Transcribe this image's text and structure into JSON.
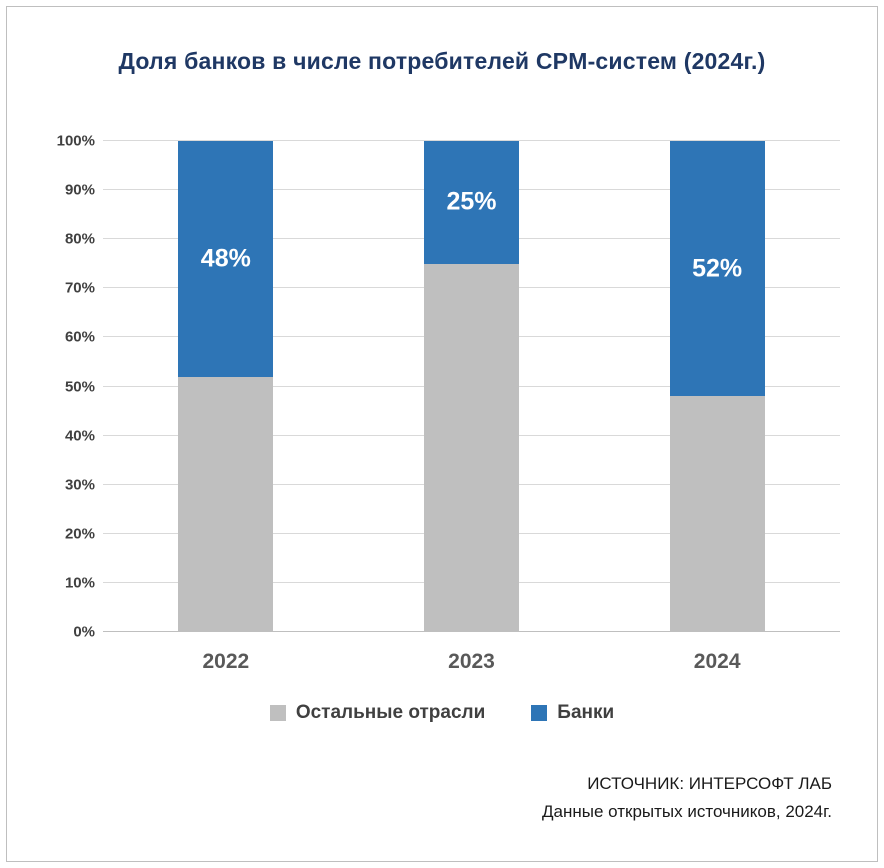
{
  "title": "Доля банков в числе потребителей CPM-систем (2024г.)",
  "chart_data": {
    "type": "bar",
    "stacked": true,
    "title": "Доля банков в числе потребителей CPM-систем (2024г.)",
    "categories": [
      "2022",
      "2023",
      "2024"
    ],
    "series": [
      {
        "name": "Остальные отрасли",
        "color": "#bfbfbf",
        "values": [
          52,
          75,
          48
        ]
      },
      {
        "name": "Банки",
        "color": "#2e75b6",
        "values": [
          48,
          25,
          52
        ],
        "labels": [
          "48%",
          "25%",
          "52%"
        ]
      }
    ],
    "xlabel": "",
    "ylabel": "",
    "ylim": [
      0,
      100
    ],
    "ytick_step": 10,
    "ytick_labels": [
      "0%",
      "10%",
      "20%",
      "30%",
      "40%",
      "50%",
      "60%",
      "70%",
      "80%",
      "90%",
      "100%"
    ],
    "grid": true,
    "legend_position": "bottom"
  },
  "source": {
    "line1": "ИСТОЧНИК: ИНТЕРСОФТ ЛАБ",
    "line2": "Данные открытых источников, 2024г."
  },
  "colors": {
    "banks": "#2e75b6",
    "others": "#bfbfbf",
    "title_text": "#1f3864",
    "axis_text": "#404040",
    "grid": "#d9d9d9",
    "background": "#ffffff",
    "border": "#bfbfbf"
  }
}
